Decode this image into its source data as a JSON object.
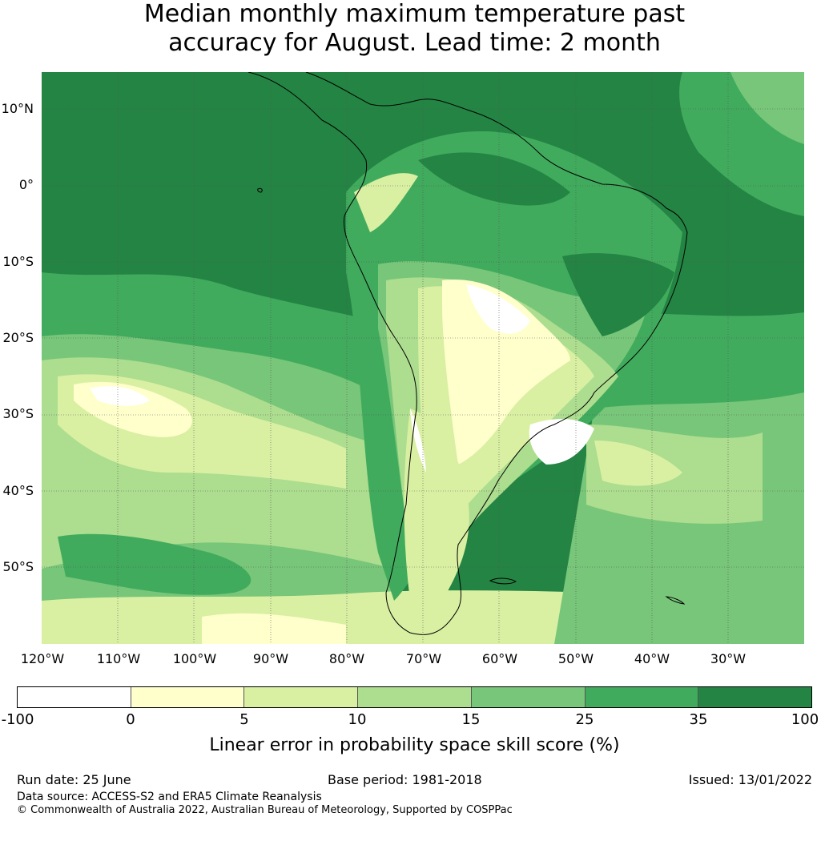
{
  "title": {
    "line1": "Median monthly maximum temperature past",
    "line2": "accuracy for August. Lead time: 2 month"
  },
  "map": {
    "lat_ticks": [
      "10°N",
      "0°",
      "10°S",
      "20°S",
      "30°S",
      "40°S",
      "50°S"
    ],
    "lon_ticks": [
      "120°W",
      "110°W",
      "100°W",
      "90°W",
      "80°W",
      "70°W",
      "60°W",
      "50°W",
      "40°W",
      "30°W"
    ],
    "land_outline_color": "#000000",
    "gridline_color": "#555555"
  },
  "colorbar": {
    "ticks": [
      "-100",
      "0",
      "5",
      "10",
      "15",
      "25",
      "35",
      "100"
    ],
    "colors": [
      "#ffffff",
      "#ffffcc",
      "#d9f0a3",
      "#addd8e",
      "#78c679",
      "#41ab5d",
      "#238443"
    ],
    "label": "Linear error in probability space skill score (%)"
  },
  "footer": {
    "run_date": "Run date: 25 June",
    "base_period": "Base period: 1981-2018",
    "issued": "Issued: 13/01/2022",
    "data_source": "Data source: ACCESS-S2 and ERA5 Climate Reanalysis",
    "copyright": "© Commonwealth of Australia 2022, Australian Bureau of Meteorology, Supported by COSPPac"
  }
}
